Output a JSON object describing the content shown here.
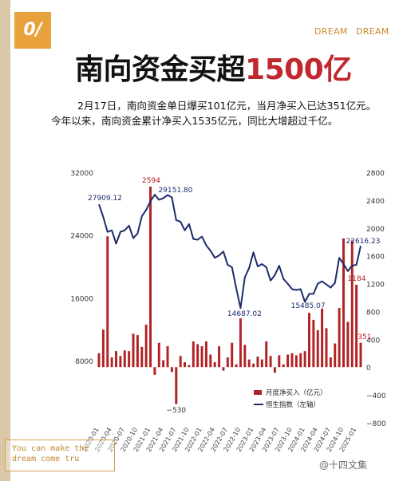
{
  "badge": "0/",
  "brand": [
    "DREAM",
    "DREAM"
  ],
  "headline": {
    "text": "南向资金买超",
    "number": "1500亿"
  },
  "subtitle": [
    "2月17日，南向资金单日爆买101亿元，当月净买入已达351亿元。",
    "今年以来，南向资金累计净买入1535亿元，同比大增超过千亿。"
  ],
  "stamp": [
    "You can make the",
    "dream come tru"
  ],
  "watermark": "@十四文集",
  "colors": {
    "bar": "#b22225",
    "line": "#1c2b6b",
    "accent": "#c0282d",
    "badge": "#e9a13c"
  },
  "chart_data": {
    "type": "bar+line",
    "x": [
      "2020-01",
      "2020-02",
      "2020-03",
      "2020-04",
      "2020-05",
      "2020-06",
      "2020-07",
      "2020-08",
      "2020-09",
      "2020-10",
      "2020-11",
      "2020-12",
      "2021-01",
      "2021-02",
      "2021-03",
      "2021-04",
      "2021-05",
      "2021-06",
      "2021-07",
      "2021-08",
      "2021-09",
      "2021-10",
      "2021-11",
      "2021-12",
      "2022-01",
      "2022-02",
      "2022-03",
      "2022-04",
      "2022-05",
      "2022-06",
      "2022-07",
      "2022-08",
      "2022-09",
      "2022-10",
      "2022-11",
      "2022-12",
      "2023-01",
      "2023-02",
      "2023-03",
      "2023-04",
      "2023-05",
      "2023-06",
      "2023-07",
      "2023-08",
      "2023-09",
      "2023-10",
      "2023-11",
      "2023-12",
      "2024-01",
      "2024-02",
      "2024-03",
      "2024-04",
      "2024-05",
      "2024-06",
      "2024-07",
      "2024-08",
      "2024-09",
      "2024-10",
      "2024-11",
      "2024-12",
      "2025-01",
      "2025-02"
    ],
    "x_tick_labels": [
      "2020-01",
      "2020-04",
      "2020-07",
      "2020-10",
      "2021-01",
      "2021-04",
      "2021-07",
      "2021-10",
      "2022-01",
      "2022-04",
      "2022-07",
      "2022-10",
      "2023-01",
      "2023-04",
      "2023-07",
      "2023-10",
      "2024-01",
      "2024-04",
      "2024-07",
      "2024-10",
      "2025-01"
    ],
    "series": [
      {
        "name": "月度净买入（亿元）",
        "axis": "right",
        "values": [
          200,
          540,
          1880,
          140,
          230,
          160,
          240,
          230,
          480,
          460,
          290,
          610,
          2594,
          -110,
          350,
          100,
          300,
          -70,
          -530,
          160,
          70,
          30,
          370,
          330,
          300,
          370,
          180,
          70,
          300,
          -50,
          140,
          350,
          40,
          700,
          320,
          110,
          50,
          150,
          110,
          370,
          160,
          -80,
          170,
          40,
          180,
          200,
          170,
          200,
          230,
          780,
          680,
          530,
          840,
          560,
          140,
          340,
          850,
          1850,
          650,
          1820,
          1184,
          351
        ]
      },
      {
        "name": "恒生指数（左轴）",
        "axis": "left",
        "values": [
          27909.12,
          26300,
          24400,
          24600,
          22900,
          24400,
          24600,
          25200,
          23600,
          24200,
          26400,
          27200,
          28300,
          29151.8,
          28500,
          28700,
          29100,
          28800,
          25900,
          25700,
          24600,
          25400,
          23500,
          23400,
          23800,
          22700,
          22000,
          21100,
          21400,
          21900,
          20200,
          19900,
          17200,
          14687.02,
          18600,
          19800,
          21800,
          20000,
          20300,
          19900,
          18200,
          18900,
          20100,
          18400,
          17800,
          17100,
          17000,
          17100,
          15485.07,
          16500,
          16500,
          17800,
          18100,
          17700,
          17300,
          17900,
          21100,
          20300,
          19400,
          20100,
          20200,
          22616.23
        ]
      }
    ],
    "annotations": [
      "2594",
      "29151.80",
      "27909.12",
      "14687.02",
      "15485.07",
      "22616.23",
      "1184",
      "351",
      "−530"
    ],
    "left_axis": {
      "ticks": [
        "32000",
        "24000",
        "16000",
        "8000"
      ],
      "ylim": [
        8000,
        32000
      ]
    },
    "right_axis": {
      "ticks": [
        "2800",
        "2400",
        "2000",
        "1600",
        "1200",
        "800",
        "400",
        "0",
        "−400",
        "−800"
      ],
      "ylim": [
        -800,
        2800
      ]
    },
    "legend": {
      "placement": "bottom-right",
      "entries": [
        "月度净买入（亿元）",
        "恒生指数（左轴）"
      ]
    },
    "grid": false
  }
}
